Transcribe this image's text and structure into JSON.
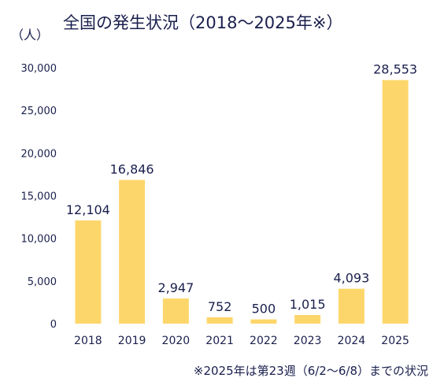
{
  "chart_data": {
    "type": "bar",
    "title": "全国の発生状況（2018～2025年※）",
    "ylabel": "（人）",
    "categories": [
      "2018",
      "2019",
      "2020",
      "2021",
      "2022",
      "2023",
      "2024",
      "2025"
    ],
    "values": [
      12104,
      16846,
      2947,
      752,
      500,
      1015,
      4093,
      28553
    ],
    "value_labels": [
      "12,104",
      "16,846",
      "2,947",
      "752",
      "500",
      "1,015",
      "4,093",
      "28,553"
    ],
    "yticks": [
      0,
      5000,
      10000,
      15000,
      20000,
      25000,
      30000
    ],
    "ytick_labels": [
      "0",
      "5,000",
      "10,000",
      "15,000",
      "20,000",
      "25,000",
      "30,000"
    ],
    "ylim": [
      0,
      30000
    ],
    "grid": false,
    "bar_color": "#fdd66b",
    "text_color": "#1a1f4d",
    "footnote": "※2025年は第23週（6/2～6/8）までの状況"
  }
}
